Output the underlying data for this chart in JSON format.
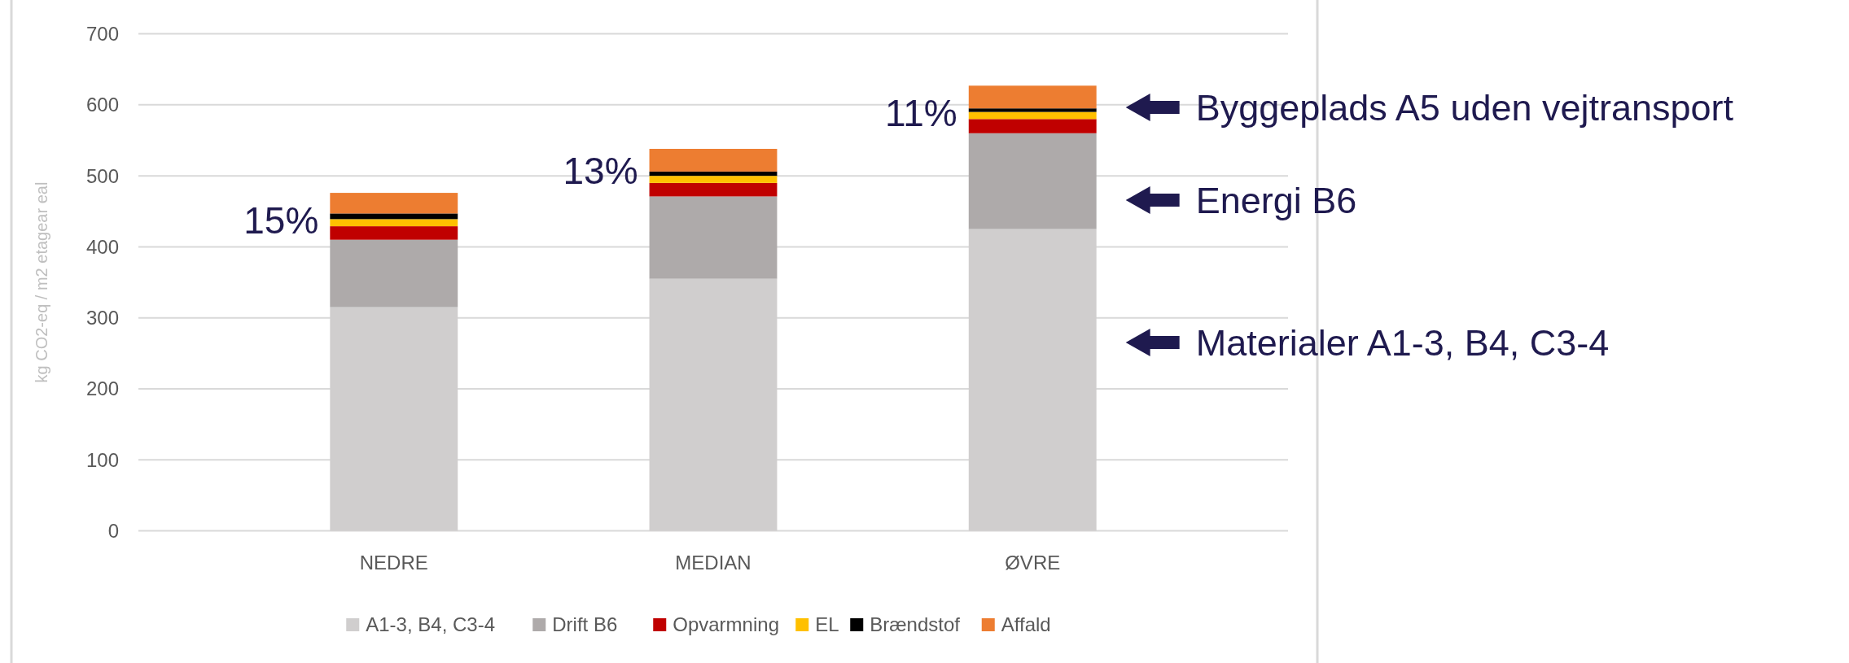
{
  "chart_data": {
    "type": "bar",
    "stacked": true,
    "ylabel": "kg CO2-eq / m2 etagear eal",
    "categories": [
      "NEDRE",
      "MEDIAN",
      "ØVRE"
    ],
    "series": [
      {
        "name": "A1-3, B4, C3-4",
        "color": "#d0cece",
        "values": [
          315,
          355,
          425
        ]
      },
      {
        "name": "Drift B6",
        "color": "#aeaaaa",
        "values": [
          95,
          116,
          135
        ]
      },
      {
        "name": "Opvarmning",
        "color": "#c00000",
        "values": [
          19,
          19,
          20
        ]
      },
      {
        "name": "EL",
        "color": "#ffc000",
        "values": [
          10,
          10,
          10
        ]
      },
      {
        "name": "Brændstof",
        "color": "#000000",
        "values": [
          8,
          6,
          5
        ]
      },
      {
        "name": "Affald",
        "color": "#ed7d31",
        "values": [
          29,
          32,
          32
        ]
      }
    ],
    "ylim": [
      0,
      700
    ],
    "yticks": [
      0,
      100,
      200,
      300,
      400,
      500,
      600,
      700
    ],
    "grid": "y",
    "legend": "bottom",
    "annotations": [
      {
        "text": "15%",
        "x": "NEDRE",
        "y": 437
      },
      {
        "text": "13%",
        "x": "MEDIAN",
        "y": 507
      },
      {
        "text": "11%",
        "x": "ØVRE",
        "y": 588
      },
      "Byggeplads A5 uden vejtransport",
      "Energi B6",
      "Materialer A1-3, B4, C3-4"
    ]
  }
}
